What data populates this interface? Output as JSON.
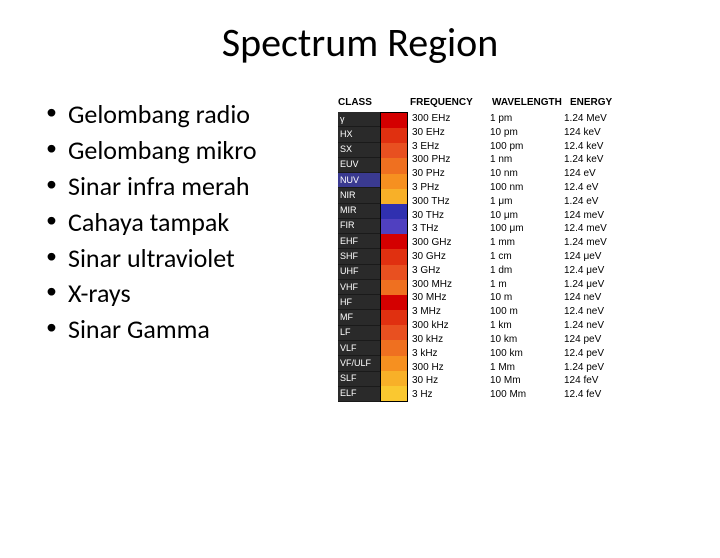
{
  "title": "Spectrum Region",
  "bullets": [
    "Gelombang radio",
    "Gelombang mikro",
    "Sinar infra merah",
    "Cahaya tampak",
    "Sinar ultraviolet",
    "X-rays",
    "Sinar Gamma"
  ],
  "chart": {
    "headers": {
      "class": "CLASS",
      "frequency": "FREQUENCY",
      "wavelength": "WAVELENGTH",
      "energy": "ENERGY"
    },
    "class_bg": "#2a2a2a",
    "class_text_color": "#ffffff",
    "nuv_bg": "#3a3a90",
    "classes": [
      "γ",
      "HX",
      "SX",
      "EUV",
      "NUV",
      "NIR",
      "MIR",
      "FIR",
      "EHF",
      "SHF",
      "UHF",
      "VHF",
      "HF",
      "MF",
      "LF",
      "VLF",
      "VF/ULF",
      "SLF",
      "ELF"
    ],
    "spectrum_colors": [
      "#d40000",
      "#e03010",
      "#e85020",
      "#ef7020",
      "#f69020",
      "#f8b028",
      "#3030b0",
      "#5040c0",
      "#d40000",
      "#e03010",
      "#e85020",
      "#ef7020",
      "#d40000",
      "#e03010",
      "#e85020",
      "#ef7020",
      "#f69020",
      "#f8b028",
      "#fac830"
    ],
    "rows": [
      {
        "freq": "300 EHz",
        "wave": "1 pm",
        "energy": "1.24 MeV"
      },
      {
        "freq": "30 EHz",
        "wave": "10 pm",
        "energy": "124 keV"
      },
      {
        "freq": "3 EHz",
        "wave": "100 pm",
        "energy": "12.4 keV"
      },
      {
        "freq": "300 PHz",
        "wave": "1 nm",
        "energy": "1.24 keV"
      },
      {
        "freq": "30 PHz",
        "wave": "10 nm",
        "energy": "124 eV"
      },
      {
        "freq": "3 PHz",
        "wave": "100 nm",
        "energy": "12.4 eV"
      },
      {
        "freq": "300 THz",
        "wave": "1 μm",
        "energy": "1.24 eV"
      },
      {
        "freq": "30 THz",
        "wave": "10 μm",
        "energy": "124 meV"
      },
      {
        "freq": "3 THz",
        "wave": "100 μm",
        "energy": "12.4 meV"
      },
      {
        "freq": "300 GHz",
        "wave": "1 mm",
        "energy": "1.24 meV"
      },
      {
        "freq": "30 GHz",
        "wave": "1 cm",
        "energy": "124 μeV"
      },
      {
        "freq": "3 GHz",
        "wave": "1 dm",
        "energy": "12.4 μeV"
      },
      {
        "freq": "300 MHz",
        "wave": "1 m",
        "energy": "1.24 μeV"
      },
      {
        "freq": "30 MHz",
        "wave": "10 m",
        "energy": "124 neV"
      },
      {
        "freq": "3 MHz",
        "wave": "100 m",
        "energy": "12.4 neV"
      },
      {
        "freq": "300 kHz",
        "wave": "1 km",
        "energy": "1.24 neV"
      },
      {
        "freq": "30 kHz",
        "wave": "10 km",
        "energy": "124 peV"
      },
      {
        "freq": "3 kHz",
        "wave": "100 km",
        "energy": "12.4 peV"
      },
      {
        "freq": "300 Hz",
        "wave": "1 Mm",
        "energy": "1.24 peV"
      },
      {
        "freq": "30 Hz",
        "wave": "10 Mm",
        "energy": "124 feV"
      },
      {
        "freq": "3 Hz",
        "wave": "100 Mm",
        "energy": "12.4 feV"
      }
    ]
  }
}
